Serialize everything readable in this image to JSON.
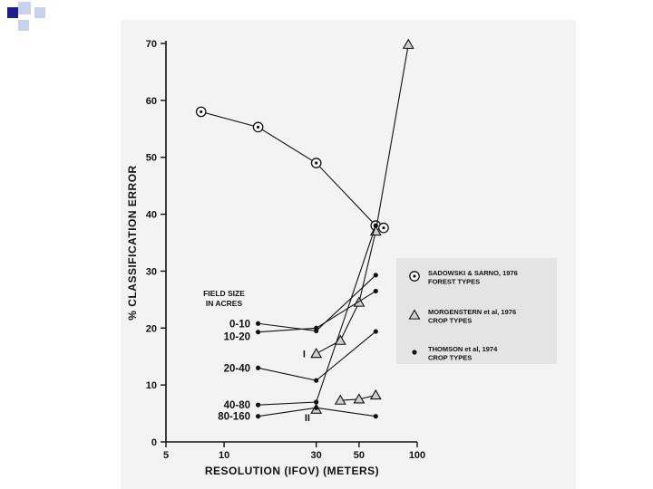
{
  "chart_data": {
    "type": "line",
    "title": "",
    "xlabel": "RESOLUTION (IFOV) (METERS)",
    "ylabel": "% CLASSIFICATION ERROR",
    "x_scale": "log",
    "xlim": [
      5,
      100
    ],
    "ylim": [
      0,
      70
    ],
    "x_ticks": [
      "5",
      "10",
      "30",
      "50",
      "100"
    ],
    "x_tick_values": [
      5,
      10,
      30,
      50,
      100
    ],
    "y_ticks": [
      "0",
      "10",
      "20",
      "30",
      "40",
      "50",
      "60",
      "70"
    ],
    "y_tick_values": [
      0,
      10,
      20,
      30,
      40,
      50,
      60,
      70
    ],
    "grid": false,
    "legend_position": "right",
    "field_size_title": [
      "FIELD SIZE",
      "IN ACRES"
    ],
    "field_size_labels": [
      {
        "text": "0-10",
        "y": 20.8
      },
      {
        "text": "10-20",
        "y": 18.5
      },
      {
        "text": "20-40",
        "y": 13
      },
      {
        "text": "40-80",
        "y": 6.5
      },
      {
        "text": "80-160",
        "y": 4.5
      }
    ],
    "annotations": [
      {
        "text": "I",
        "x": 26,
        "y": 15.5
      },
      {
        "text": "II",
        "x": 27,
        "y": 4.3
      }
    ],
    "legend": [
      {
        "marker": "circle-dot",
        "lines": [
          "SADOWSKI & SARNO, 1976",
          "FOREST TYPES"
        ]
      },
      {
        "marker": "triangle",
        "lines": [
          "MORGENSTERN et al, 1976",
          "CROP TYPES"
        ]
      },
      {
        "marker": "dot",
        "lines": [
          "THOMSON et al, 1974",
          "CROP TYPES"
        ]
      }
    ],
    "series": [
      {
        "group": "sadowski",
        "marker": "circle-dot",
        "x": [
          7.6,
          15,
          30,
          61,
          67
        ],
        "y": [
          58,
          55.3,
          49,
          38,
          37.6
        ]
      },
      {
        "group": "morgenstern",
        "marker": "triangle",
        "x": [
          30,
          40,
          50,
          61,
          90
        ],
        "y": [
          15.5,
          17.8,
          24.5,
          37,
          69.8
        ]
      },
      {
        "group": "morgenstern",
        "marker": "triangle",
        "x": [
          40,
          50,
          61
        ],
        "y": [
          7.3,
          7.5,
          8.2
        ]
      },
      {
        "group": "morgenstern",
        "marker": "triangle",
        "x": [
          30
        ],
        "y": [
          5.7
        ]
      },
      {
        "group": "thomson",
        "marker": "dot",
        "x": [
          15,
          30,
          61
        ],
        "y": [
          20.8,
          19.5,
          29.3
        ]
      },
      {
        "group": "thomson",
        "marker": "dot",
        "x": [
          15,
          30,
          61
        ],
        "y": [
          19.3,
          20,
          26.5
        ]
      },
      {
        "group": "thomson",
        "marker": "dot",
        "x": [
          15,
          30,
          61
        ],
        "y": [
          13,
          10.8,
          19.4
        ]
      },
      {
        "group": "thomson",
        "marker": "dot",
        "x": [
          15,
          30,
          61
        ],
        "y": [
          6.5,
          7,
          38
        ]
      },
      {
        "group": "thomson",
        "marker": "dot",
        "x": [
          15,
          30,
          61
        ],
        "y": [
          4.5,
          6,
          4.5
        ]
      }
    ]
  }
}
